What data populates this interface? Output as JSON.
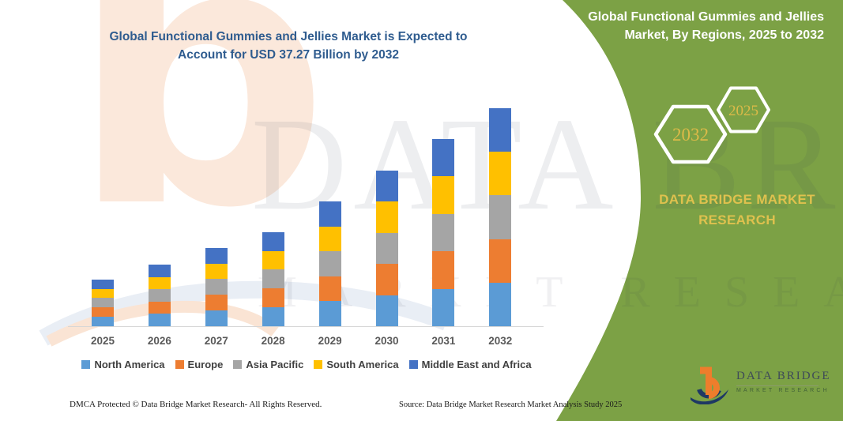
{
  "title": {
    "line1": "Global Functional Gummies and Jellies Market is Expected to",
    "line2": "Account for USD 37.27 Billion by 2032"
  },
  "side_panel": {
    "heading_line1": "Global Functional Gummies and Jellies",
    "heading_line2": "Market, By Regions, 2025 to 2032",
    "hexagons": [
      "2032",
      "2025"
    ],
    "brand_line1": "DATA BRIDGE MARKET",
    "brand_line2": "RESEARCH",
    "panel_color": "#7ca145",
    "gold_color": "#dfc14e"
  },
  "chart_data": {
    "type": "bar",
    "stacked": true,
    "unit": "USD Billion",
    "categories": [
      "2025",
      "2026",
      "2027",
      "2028",
      "2029",
      "2030",
      "2031",
      "2032"
    ],
    "series": [
      {
        "name": "North America",
        "color": "#5b9bd5",
        "values": [
          1.6,
          2.1,
          2.68,
          3.22,
          4.26,
          5.32,
          6.4,
          7.45
        ]
      },
      {
        "name": "Europe",
        "color": "#ed7d31",
        "values": [
          1.6,
          2.1,
          2.68,
          3.22,
          4.26,
          5.32,
          6.4,
          7.45
        ]
      },
      {
        "name": "Asia Pacific",
        "color": "#a5a5a5",
        "values": [
          1.6,
          2.1,
          2.68,
          3.22,
          4.26,
          5.32,
          6.4,
          7.45
        ]
      },
      {
        "name": "South America",
        "color": "#ffc000",
        "values": [
          1.6,
          2.1,
          2.68,
          3.22,
          4.26,
          5.32,
          6.4,
          7.45
        ]
      },
      {
        "name": "Middle East and Africa",
        "color": "#4472c4",
        "values": [
          1.6,
          2.1,
          2.68,
          3.22,
          4.26,
          5.32,
          6.4,
          7.45
        ]
      }
    ],
    "totals_estimated": [
      8.0,
      10.5,
      13.4,
      16.1,
      21.3,
      26.6,
      32.0,
      37.27
    ],
    "ylim": [
      0,
      37.27
    ],
    "grid": false,
    "legend_position": "bottom",
    "xlabel": "",
    "ylabel": ""
  },
  "watermark": {
    "glyph": "b",
    "text_primary": "DATA BRIDGE",
    "text_secondary": "MARKET RESEARCH"
  },
  "logo": {
    "name": "DATA BRIDGE",
    "sub": "MARKET RESEARCH"
  },
  "footer": {
    "left": "DMCA Protected © Data Bridge Market Research-  All Rights Reserved.",
    "source": "Source: Data Bridge Market Research  Market Analysis Study 2025"
  }
}
